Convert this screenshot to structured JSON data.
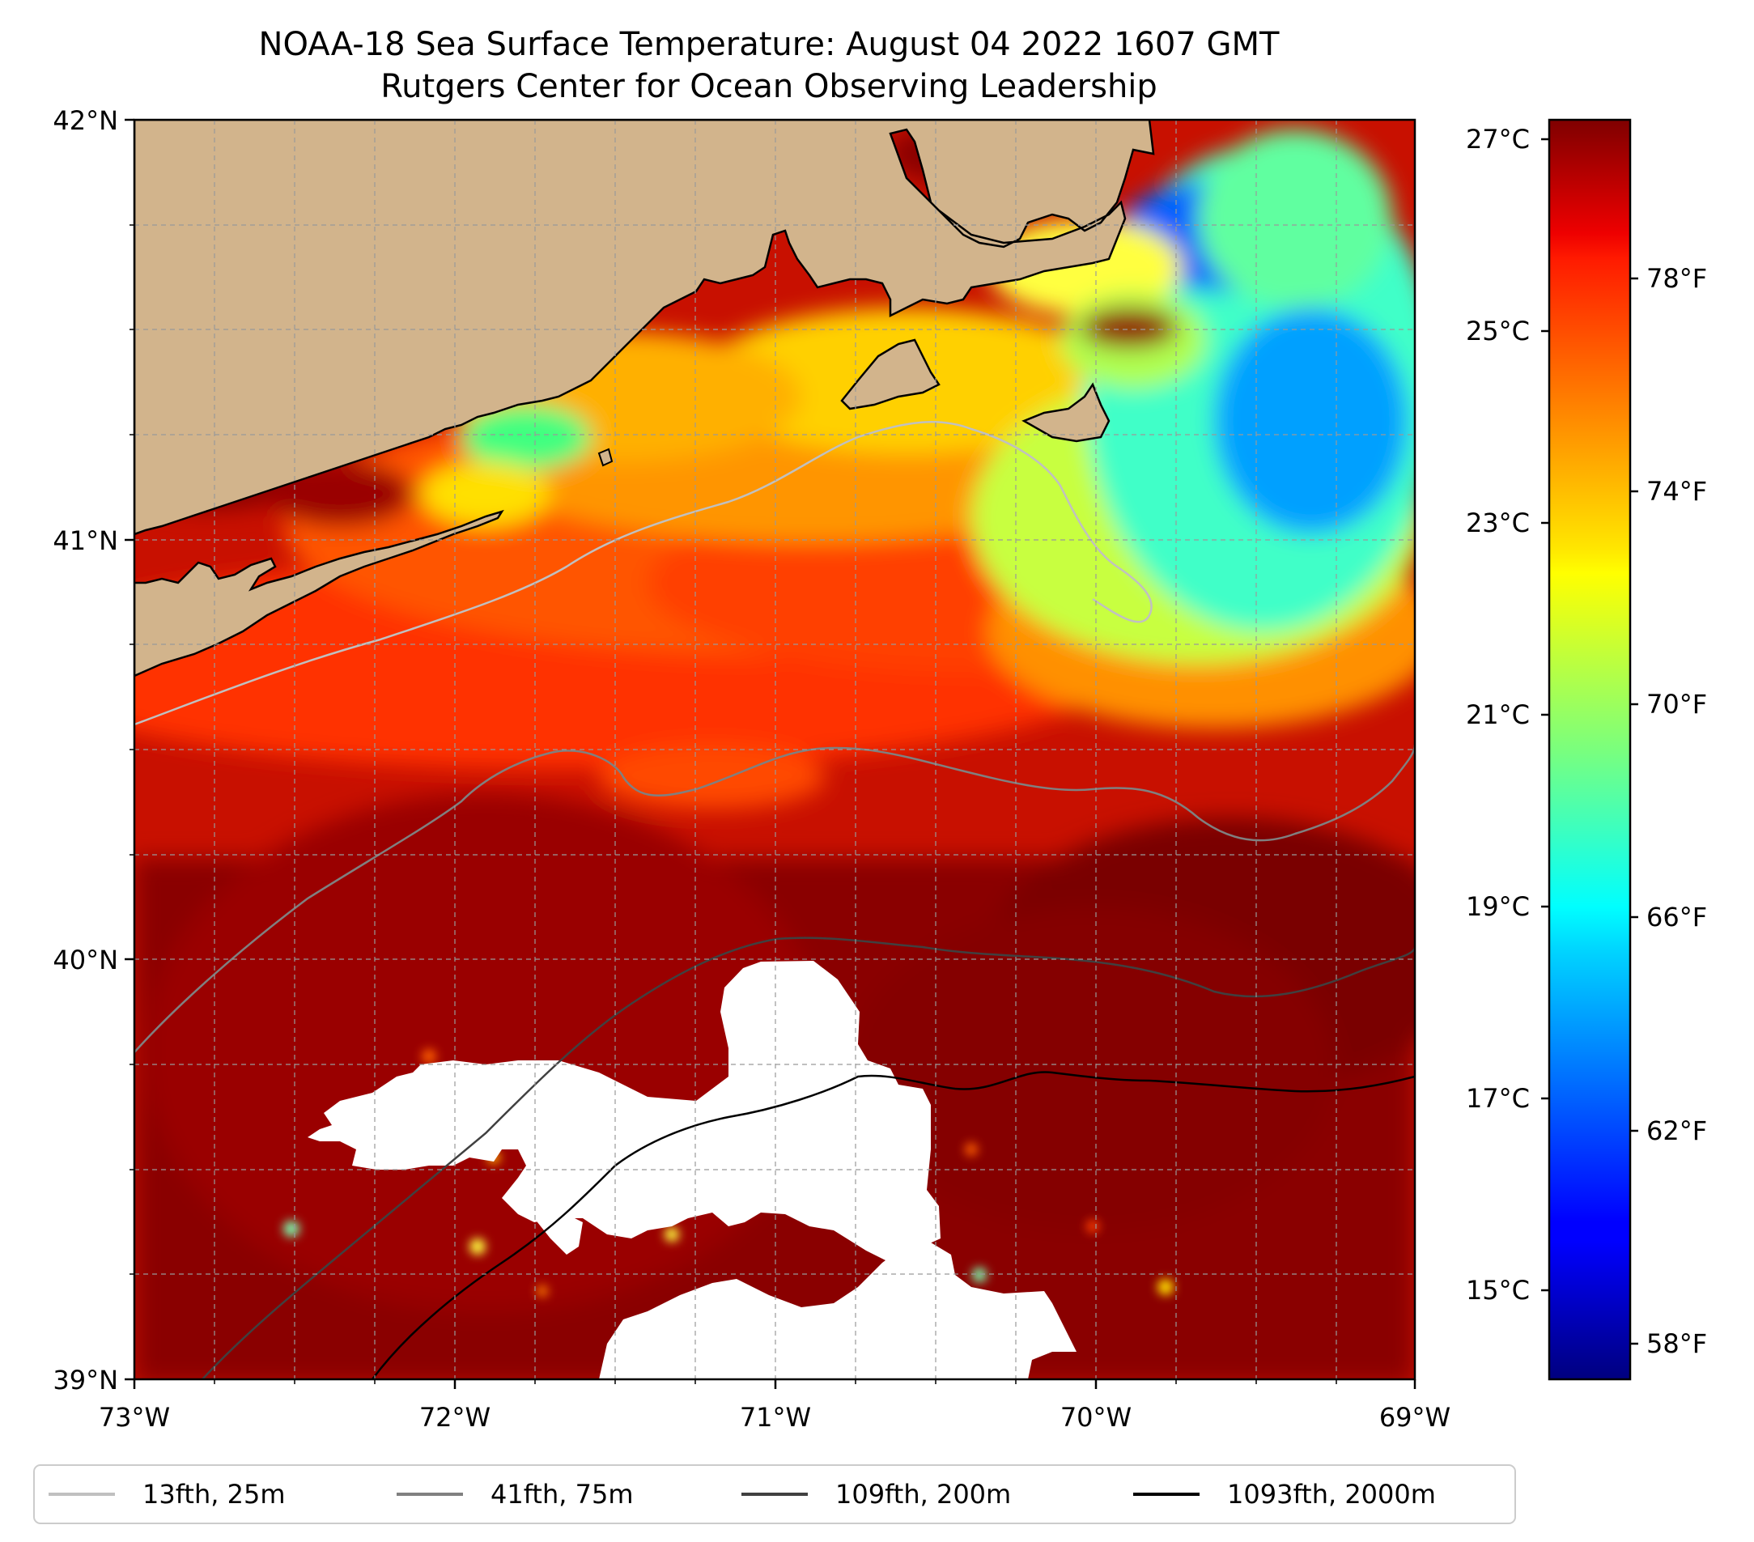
{
  "title": {
    "line1": "NOAA-18 Sea Surface Temperature: August 04 2022 1607 GMT",
    "line2": "Rutgers Center for Ocean Observing Leadership"
  },
  "axes": {
    "x_ticks": [
      "73°W",
      "72°W",
      "71°W",
      "70°W",
      "69°W"
    ],
    "y_ticks": [
      "42°N",
      "41°N",
      "40°N",
      "39°N"
    ],
    "xlim": [
      -73,
      -69
    ],
    "ylim": [
      39,
      42
    ],
    "grid": true
  },
  "colorbar": {
    "colormap": "jet",
    "celsius_ticks": [
      "27°C",
      "25°C",
      "23°C",
      "21°C",
      "19°C",
      "17°C",
      "15°C"
    ],
    "fahrenheit_ticks": [
      "78°F",
      "74°F",
      "70°F",
      "66°F",
      "62°F",
      "58°F"
    ]
  },
  "legend": {
    "placement": "bottom",
    "items": [
      {
        "label": "13fth, 25m",
        "color": "#c0c0c0"
      },
      {
        "label": "41fth, 75m",
        "color": "#808080"
      },
      {
        "label": "109fth, 200m",
        "color": "#404040"
      },
      {
        "label": "1093fth, 2000m",
        "color": "#000000"
      }
    ]
  },
  "colors": {
    "land": "#d2b48c",
    "no_data": "#ffffff"
  }
}
